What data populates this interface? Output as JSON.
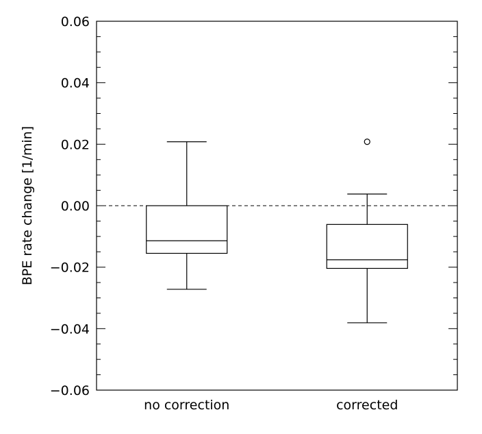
{
  "chart_data": {
    "type": "box",
    "title": "",
    "xlabel": "",
    "ylabel": "BPE rate change [1/min]",
    "ylim": [
      -0.06,
      0.06
    ],
    "y_major_ticks": [
      -0.06,
      -0.04,
      -0.02,
      0.0,
      0.02,
      0.04,
      0.06
    ],
    "y_tick_labels": [
      "−0.06",
      "−0.04",
      "−0.02",
      "0.00",
      "0.02",
      "0.04",
      "0.06"
    ],
    "y_minor_step": 0.005,
    "reference_line": {
      "y": 0.0,
      "style": "dashed"
    },
    "grid": false,
    "categories": [
      "no correction",
      "corrected"
    ],
    "boxes": [
      {
        "category": "no correction",
        "whisker_low": -0.0272,
        "q1": -0.0155,
        "median": -0.0114,
        "q3": 0.0,
        "whisker_high": 0.0208,
        "outliers": []
      },
      {
        "category": "corrected",
        "whisker_low": -0.0381,
        "q1": -0.0204,
        "median": -0.0176,
        "q3": -0.0061,
        "whisker_high": 0.0038,
        "outliers": [
          0.0208
        ]
      }
    ]
  }
}
